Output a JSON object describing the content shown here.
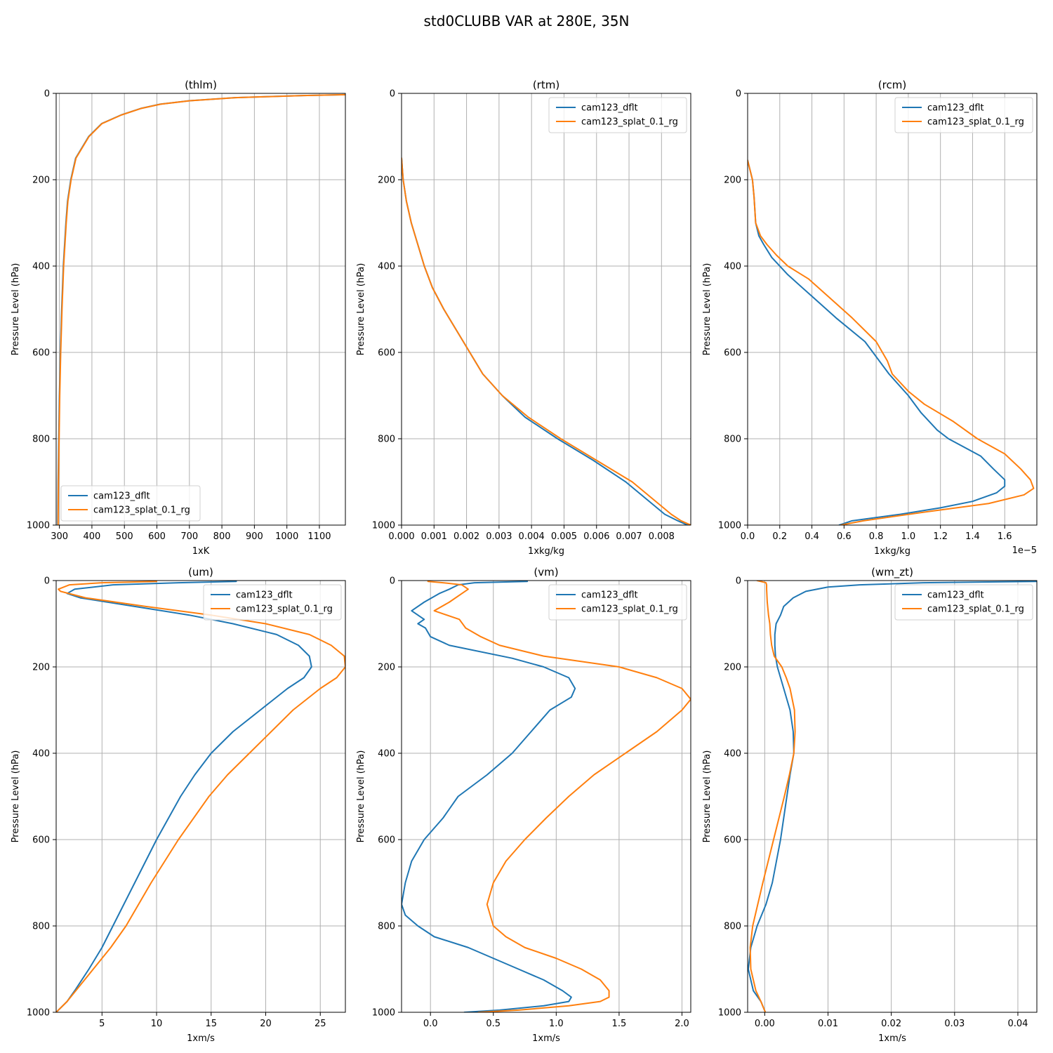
{
  "figure_title": "std0CLUBB VAR at 280E, 35N",
  "colors": {
    "cam123_dflt": "#1f77b4",
    "cam123_splat_0.1_rg": "#ff7f0e"
  },
  "chart_data": [
    {
      "type": "line",
      "title": "(thlm)",
      "xlabel": "1xK",
      "ylabel": "Pressure Level (hPa)",
      "xlim": [
        290,
        1180
      ],
      "ylim": [
        1000,
        0
      ],
      "grid": true,
      "legend": "lower-left",
      "xticks": [
        300,
        400,
        500,
        600,
        700,
        800,
        900,
        1000,
        1100
      ],
      "yticks": [
        0,
        200,
        400,
        600,
        800,
        1000
      ],
      "series": [
        {
          "name": "cam123_dflt",
          "color": "#1f77b4",
          "p": [
            3,
            5,
            10,
            17,
            25,
            35,
            50,
            70,
            100,
            150,
            200,
            250,
            300,
            400,
            500,
            600,
            700,
            800,
            900,
            1000
          ],
          "x": [
            1180,
            1050,
            840,
            700,
            610,
            550,
            490,
            430,
            390,
            350,
            335,
            325,
            320,
            312,
            307,
            303,
            300,
            298,
            296,
            295
          ]
        },
        {
          "name": "cam123_splat_0.1_rg",
          "color": "#ff7f0e",
          "p": [
            3,
            5,
            10,
            17,
            25,
            35,
            50,
            70,
            100,
            150,
            200,
            250,
            300,
            400,
            500,
            600,
            700,
            800,
            900,
            1000
          ],
          "x": [
            1180,
            1050,
            842,
            702,
            612,
            551,
            491,
            431,
            391,
            351,
            336,
            326,
            321,
            313,
            308,
            304,
            301,
            299,
            297,
            296
          ]
        }
      ]
    },
    {
      "type": "line",
      "title": "(rtm)",
      "xlabel": "1xkg/kg",
      "ylabel": "Pressure Level (hPa)",
      "xlim": [
        0.0,
        0.0089
      ],
      "ylim": [
        1000,
        0
      ],
      "grid": true,
      "legend": "upper-right",
      "xticks": [
        0.0,
        0.001,
        0.002,
        0.003,
        0.004,
        0.005,
        0.006,
        0.007,
        0.008
      ],
      "xticklabels": [
        "0.000",
        "0.001",
        "0.002",
        "0.003",
        "0.004",
        "0.005",
        "0.006",
        "0.007",
        "0.008"
      ],
      "yticks": [
        0,
        200,
        400,
        600,
        800,
        1000
      ],
      "series": [
        {
          "name": "cam123_dflt",
          "color": "#1f77b4",
          "p": [
            150,
            200,
            250,
            300,
            350,
            400,
            450,
            500,
            550,
            600,
            650,
            700,
            750,
            800,
            850,
            900,
            950,
            975,
            990,
            1000
          ],
          "x": [
            0.0,
            5e-05,
            0.00015,
            0.0003,
            0.0005,
            0.0007,
            0.00095,
            0.0013,
            0.0017,
            0.0021,
            0.0025,
            0.0031,
            0.0038,
            0.0048,
            0.0059,
            0.0069,
            0.0077,
            0.0081,
            0.0085,
            0.0088
          ]
        },
        {
          "name": "cam123_splat_0.1_rg",
          "color": "#ff7f0e",
          "p": [
            150,
            200,
            250,
            300,
            350,
            400,
            450,
            500,
            550,
            600,
            650,
            700,
            750,
            800,
            850,
            900,
            950,
            975,
            990,
            1000
          ],
          "x": [
            0.0,
            5e-05,
            0.00015,
            0.0003,
            0.0005,
            0.0007,
            0.00095,
            0.0013,
            0.0017,
            0.0021,
            0.0025,
            0.0031,
            0.0039,
            0.0049,
            0.006,
            0.0071,
            0.0079,
            0.0083,
            0.0086,
            0.0089
          ]
        }
      ]
    },
    {
      "type": "line",
      "title": "(rcm)",
      "xlabel": "1xkg/kg",
      "ylabel": "Pressure Level (hPa)",
      "offset_text": "1e−5",
      "xlim": [
        0.0,
        1.8
      ],
      "ylim": [
        1000,
        0
      ],
      "grid": true,
      "legend": "upper-right",
      "xticks": [
        0.0,
        0.2,
        0.4,
        0.6,
        0.8,
        1.0,
        1.2,
        1.4,
        1.6
      ],
      "xticklabels": [
        "0.0",
        "0.2",
        "0.4",
        "0.6",
        "0.8",
        "1.0",
        "1.2",
        "1.4",
        "1.6"
      ],
      "yticks": [
        0,
        200,
        400,
        600,
        800,
        1000
      ],
      "series": [
        {
          "name": "cam123_dflt",
          "color": "#1f77b4",
          "p": [
            155,
            200,
            240,
            300,
            330,
            350,
            380,
            420,
            470,
            520,
            575,
            610,
            650,
            700,
            740,
            780,
            800,
            840,
            870,
            895,
            910,
            925,
            945,
            960,
            975,
            990,
            1000
          ],
          "x": [
            0.0,
            0.03,
            0.04,
            0.05,
            0.07,
            0.1,
            0.15,
            0.25,
            0.4,
            0.55,
            0.73,
            0.8,
            0.88,
            1.0,
            1.08,
            1.18,
            1.25,
            1.45,
            1.53,
            1.6,
            1.6,
            1.55,
            1.4,
            1.2,
            0.95,
            0.65,
            0.57
          ]
        },
        {
          "name": "cam123_splat_0.1_rg",
          "color": "#ff7f0e",
          "p": [
            155,
            200,
            240,
            300,
            330,
            350,
            375,
            400,
            430,
            470,
            520,
            575,
            620,
            650,
            690,
            720,
            760,
            800,
            835,
            870,
            895,
            915,
            930,
            950,
            970,
            990,
            1000
          ],
          "x": [
            0.0,
            0.03,
            0.04,
            0.05,
            0.08,
            0.12,
            0.18,
            0.25,
            0.38,
            0.5,
            0.65,
            0.8,
            0.87,
            0.9,
            1.0,
            1.1,
            1.28,
            1.43,
            1.6,
            1.7,
            1.76,
            1.78,
            1.72,
            1.5,
            1.1,
            0.72,
            0.58
          ]
        }
      ]
    },
    {
      "type": "line",
      "title": "(um)",
      "xlabel": "1xm/s",
      "ylabel": "Pressure Level (hPa)",
      "xlim": [
        0.8,
        27.3
      ],
      "ylim": [
        1000,
        0
      ],
      "grid": true,
      "legend": "upper-right",
      "xticks": [
        5,
        10,
        15,
        20,
        25
      ],
      "yticks": [
        0,
        200,
        400,
        600,
        800,
        1000
      ],
      "series": [
        {
          "name": "cam123_dflt",
          "color": "#1f77b4",
          "p": [
            2,
            5,
            10,
            20,
            30,
            40,
            60,
            80,
            100,
            125,
            150,
            175,
            200,
            225,
            250,
            300,
            350,
            400,
            450,
            500,
            600,
            700,
            800,
            850,
            900,
            950,
            975,
            1000
          ],
          "x": [
            17.3,
            12,
            6,
            2.5,
            1.8,
            3,
            8,
            13,
            17,
            21,
            23,
            24,
            24.2,
            23.5,
            22,
            19.5,
            17,
            15,
            13.5,
            12.2,
            10,
            8,
            6,
            5,
            3.8,
            2.5,
            1.8,
            0.8
          ]
        },
        {
          "name": "cam123_splat_0.1_rg",
          "color": "#ff7f0e",
          "p": [
            2,
            5,
            10,
            20,
            25,
            40,
            60,
            80,
            100,
            125,
            150,
            175,
            200,
            225,
            250,
            300,
            350,
            400,
            450,
            500,
            600,
            700,
            800,
            850,
            900,
            950,
            975,
            1000
          ],
          "x": [
            10,
            5,
            2,
            1,
            1.2,
            3.5,
            9,
            15,
            20,
            24,
            26,
            27.2,
            27.3,
            26.5,
            25,
            22.5,
            20.5,
            18.5,
            16.5,
            14.8,
            12,
            9.5,
            7.2,
            5.8,
            4.2,
            2.6,
            1.8,
            0.8
          ]
        }
      ]
    },
    {
      "type": "line",
      "title": "(vm)",
      "xlabel": "1xm/s",
      "ylabel": "Pressure Level (hPa)",
      "xlim": [
        -0.23,
        2.07
      ],
      "ylim": [
        1000,
        0
      ],
      "grid": true,
      "legend": "upper-right",
      "xticks": [
        0.0,
        0.5,
        1.0,
        1.5,
        2.0
      ],
      "xticklabels": [
        "0.0",
        "0.5",
        "1.0",
        "1.5",
        "2.0"
      ],
      "yticks": [
        0,
        200,
        400,
        600,
        800,
        1000
      ],
      "series": [
        {
          "name": "cam123_dflt",
          "color": "#1f77b4",
          "p": [
            2,
            5,
            10,
            20,
            30,
            50,
            70,
            90,
            100,
            110,
            130,
            150,
            180,
            200,
            225,
            250,
            270,
            300,
            350,
            400,
            450,
            500,
            550,
            600,
            650,
            700,
            750,
            775,
            800,
            825,
            850,
            875,
            900,
            925,
            950,
            965,
            975,
            985,
            995,
            1000
          ],
          "x": [
            0.77,
            0.35,
            0.22,
            0.15,
            0.07,
            -0.05,
            -0.15,
            -0.05,
            -0.1,
            -0.04,
            0.0,
            0.15,
            0.65,
            0.9,
            1.1,
            1.15,
            1.12,
            0.95,
            0.8,
            0.65,
            0.45,
            0.22,
            0.1,
            -0.05,
            -0.15,
            -0.2,
            -0.23,
            -0.2,
            -0.1,
            0.03,
            0.3,
            0.5,
            0.7,
            0.9,
            1.05,
            1.12,
            1.1,
            0.9,
            0.55,
            0.27
          ]
        },
        {
          "name": "cam123_splat_0.1_rg",
          "color": "#ff7f0e",
          "p": [
            2,
            5,
            10,
            20,
            30,
            50,
            70,
            90,
            110,
            130,
            150,
            175,
            200,
            225,
            250,
            275,
            300,
            350,
            400,
            450,
            500,
            550,
            600,
            650,
            700,
            750,
            800,
            825,
            850,
            875,
            900,
            925,
            950,
            965,
            975,
            985,
            995,
            1000
          ],
          "x": [
            -0.02,
            0.1,
            0.25,
            0.3,
            0.25,
            0.15,
            0.03,
            0.23,
            0.28,
            0.4,
            0.55,
            0.9,
            1.5,
            1.8,
            2.0,
            2.07,
            2.0,
            1.8,
            1.55,
            1.3,
            1.1,
            0.92,
            0.75,
            0.6,
            0.5,
            0.45,
            0.5,
            0.6,
            0.75,
            1.0,
            1.2,
            1.35,
            1.42,
            1.42,
            1.35,
            1.1,
            0.7,
            0.38
          ]
        }
      ]
    },
    {
      "type": "line",
      "title": "(wm_zt)",
      "xlabel": "1xm/s",
      "ylabel": "Pressure Level (hPa)",
      "xlim": [
        -0.0027,
        0.043
      ],
      "ylim": [
        1000,
        0
      ],
      "grid": true,
      "legend": "upper-right",
      "xticks": [
        0.0,
        0.01,
        0.02,
        0.03,
        0.04
      ],
      "xticklabels": [
        "0.00",
        "0.01",
        "0.02",
        "0.03",
        "0.04"
      ],
      "yticks": [
        0,
        200,
        400,
        600,
        800,
        1000
      ],
      "series": [
        {
          "name": "cam123_dflt",
          "color": "#1f77b4",
          "p": [
            2,
            5,
            10,
            15,
            25,
            40,
            60,
            80,
            100,
            125,
            150,
            175,
            200,
            250,
            300,
            350,
            400,
            450,
            500,
            600,
            700,
            750,
            800,
            850,
            900,
            950,
            975,
            1000
          ],
          "x": [
            0.043,
            0.025,
            0.015,
            0.01,
            0.0065,
            0.0045,
            0.003,
            0.0025,
            0.0018,
            0.0016,
            0.0016,
            0.0017,
            0.002,
            0.003,
            0.004,
            0.0045,
            0.0046,
            0.004,
            0.0035,
            0.0025,
            0.0012,
            0.0002,
            -0.0012,
            -0.0022,
            -0.0026,
            -0.0018,
            -0.0006,
            0.0001
          ]
        },
        {
          "name": "cam123_splat_0.1_rg",
          "color": "#ff7f0e",
          "p": [
            0,
            5,
            10,
            20,
            50,
            80,
            100,
            125,
            150,
            175,
            200,
            225,
            250,
            300,
            350,
            400,
            450,
            500,
            600,
            700,
            750,
            800,
            850,
            900,
            950,
            975,
            1000
          ],
          "x": [
            -0.0012,
            0.0002,
            0.0003,
            0.0003,
            0.0004,
            0.0006,
            0.0008,
            0.0009,
            0.0011,
            0.0015,
            0.0027,
            0.0034,
            0.004,
            0.0047,
            0.0048,
            0.0046,
            0.0039,
            0.0031,
            0.0014,
            -0.0003,
            -0.0011,
            -0.0019,
            -0.0023,
            -0.0022,
            -0.0014,
            -0.0006,
            0.0001
          ]
        }
      ]
    }
  ]
}
